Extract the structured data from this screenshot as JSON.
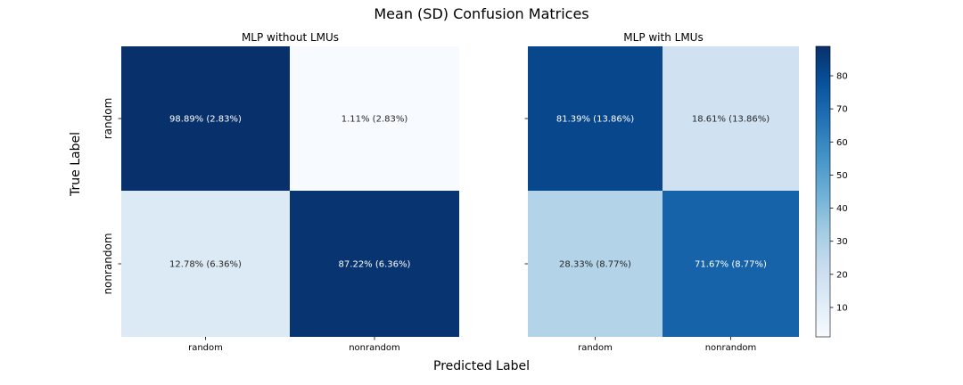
{
  "chart_data": {
    "type": "heatmap",
    "title": "Mean (SD) Confusion Matrices",
    "xlabel": "Predicted Label",
    "ylabel": "True Label",
    "row_labels": [
      "random",
      "nonrandom"
    ],
    "col_labels": [
      "random",
      "nonrandom"
    ],
    "colorbar": {
      "range": [
        1.11,
        88.89
      ],
      "ticks": [
        10,
        20,
        30,
        40,
        50,
        60,
        70,
        80
      ],
      "colormap": "Blues"
    },
    "panels": [
      {
        "title": "MLP without LMUs",
        "values": [
          [
            98.89,
            1.11
          ],
          [
            12.78,
            87.22
          ]
        ],
        "labels": [
          [
            "98.89% (2.83%)",
            "1.11% (2.83%)"
          ],
          [
            "12.78% (6.36%)",
            "87.22% (6.36%)"
          ]
        ]
      },
      {
        "title": "MLP with LMUs",
        "values": [
          [
            81.39,
            18.61
          ],
          [
            28.33,
            71.67
          ]
        ],
        "labels": [
          [
            "81.39% (13.86%)",
            "18.61% (13.86%)"
          ],
          [
            "28.33% (8.77%)",
            "71.67% (8.77%)"
          ]
        ]
      }
    ]
  }
}
